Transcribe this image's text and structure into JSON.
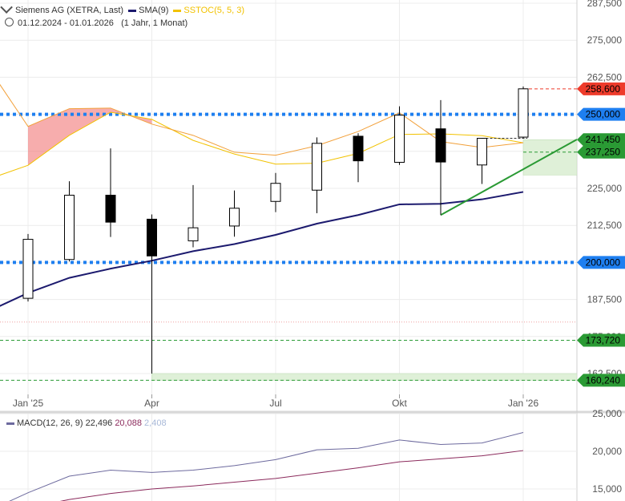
{
  "header": {
    "instrument": "Siemens AG (XETRA, Last)",
    "sma_label": "SMA(9)",
    "sstoc_label": "SSTOC(5, 5, 3)",
    "period": "01.12.2024 - 01.01.2026",
    "period_note": "(1 Jahr, 1 Monat)"
  },
  "macd_legend": {
    "label": "MACD(12, 26, 9)",
    "v1": "22,496",
    "v2": "20,088",
    "v3": "2,408"
  },
  "colors": {
    "up_body": "#ffffff",
    "down_body": "#000000",
    "sma": "#1c1a6e",
    "sstoc_fast": "#f2c200",
    "sstoc_slow": "#f2a03a",
    "level_blue": "#1e7ff0",
    "support_green": "#2a9a34",
    "last_red": "#ee3b2b",
    "macd_line": "#6d6a9e",
    "signal_line": "#8b2a5c"
  },
  "chart_data": [
    {
      "type": "candlestick",
      "title": "Siemens AG (XETRA, Last)",
      "x_ticks": [
        "Jan '25",
        "Apr",
        "Jul",
        "Okt",
        "Jan '26"
      ],
      "y_ticks": [
        "287,500",
        "275,000",
        "262,500",
        "250,000",
        "237,500",
        "225,000",
        "212,500",
        "200,000",
        "187,500",
        "175,000",
        "162,500"
      ],
      "y_tick_values": [
        287.5,
        275,
        262.5,
        250,
        237.5,
        225,
        212.5,
        200,
        187.5,
        175,
        162.5
      ],
      "ylim": [
        160,
        288
      ],
      "months": [
        "2025-01",
        "2025-02",
        "2025-03",
        "2025-04",
        "2025-05",
        "2025-06",
        "2025-07",
        "2025-08",
        "2025-09",
        "2025-10",
        "2025-11",
        "2025-12",
        "2026-01"
      ],
      "candles": [
        {
          "open": 187.9,
          "high": 209.6,
          "low": 186.8,
          "close": 207.8
        },
        {
          "open": 201.0,
          "high": 227.4,
          "low": 200.3,
          "close": 222.7
        },
        {
          "open": 222.7,
          "high": 238.5,
          "low": 208.6,
          "close": 213.6
        },
        {
          "open": 214.6,
          "high": 216.2,
          "low": 162.5,
          "close": 202.2
        },
        {
          "open": 207.3,
          "high": 226.1,
          "low": 205.1,
          "close": 211.7
        },
        {
          "open": 212.3,
          "high": 224.3,
          "low": 208.7,
          "close": 218.3
        },
        {
          "open": 220.6,
          "high": 230.2,
          "low": 217.0,
          "close": 226.7
        },
        {
          "open": 224.4,
          "high": 242.2,
          "low": 216.6,
          "close": 240.2
        },
        {
          "open": 242.6,
          "high": 243.6,
          "low": 227.1,
          "close": 234.3
        },
        {
          "open": 233.8,
          "high": 252.7,
          "low": 232.9,
          "close": 249.7
        },
        {
          "open": 245.1,
          "high": 254.8,
          "low": 216.0,
          "close": 233.9
        },
        {
          "open": 232.9,
          "high": 242.0,
          "low": 226.5,
          "close": 241.9
        },
        {
          "open": 242.3,
          "high": 259.4,
          "low": 242.0,
          "close": 258.6
        }
      ],
      "sma9": [
        189.7,
        194.8,
        197.9,
        200.6,
        203.8,
        206.2,
        209.3,
        213.1,
        216.0,
        219.6,
        219.8,
        221.3,
        223.8
      ],
      "sstoc_fast": [
        232.8,
        242.9,
        250.7,
        248.3,
        241.2,
        236.6,
        233.2,
        233.5,
        236.8,
        243.2,
        243.4,
        242.8,
        240.4
      ],
      "sstoc_slow": [
        245.9,
        251.9,
        252.1,
        246.7,
        242.9,
        237.2,
        236.2,
        239.4,
        244.2,
        250.5,
        240.8,
        238.8,
        240.4
      ],
      "horizontal_levels": [
        {
          "value": 250.0,
          "label": "250,000",
          "style": "blue-dotted"
        },
        {
          "value": 200.0,
          "label": "200,000",
          "style": "blue-dotted"
        },
        {
          "value": 173.72,
          "label": "173,720",
          "style": "green-dashed"
        },
        {
          "value": 160.24,
          "label": "160,240",
          "style": "green-dashed"
        },
        {
          "value": 237.25,
          "label": "237,250",
          "style": "green-dashed"
        },
        {
          "value": 241.45,
          "label": "241,450",
          "style": "zone"
        },
        {
          "value": 258.6,
          "label": "258,600",
          "style": "last"
        }
      ],
      "zones": [
        {
          "from": 160.24,
          "to": 162.5,
          "start_month": 3
        },
        {
          "from": 229.5,
          "to": 241.45,
          "start_month": 12
        }
      ],
      "trendline": {
        "from": [
          10,
          216.0
        ],
        "to": [
          13.3,
          241.5
        ]
      },
      "last_close_line": 258.6,
      "stray_line": 179.9
    },
    {
      "type": "line",
      "title": "MACD(12, 26, 9)",
      "y_ticks": [
        "25,000",
        "20,000",
        "15,000"
      ],
      "y_tick_values": [
        25,
        20,
        15
      ],
      "ylim": [
        13.5,
        26
      ],
      "macd": [
        12.0,
        14.5,
        16.7,
        17.5,
        17.2,
        17.5,
        18.1,
        18.9,
        20.2,
        20.4,
        21.5,
        20.9,
        21.1,
        22.5
      ],
      "signal": [
        11.0,
        12.5,
        13.6,
        14.4,
        15.0,
        15.4,
        15.9,
        16.4,
        17.1,
        17.8,
        18.6,
        19.0,
        19.4,
        20.1
      ]
    }
  ]
}
